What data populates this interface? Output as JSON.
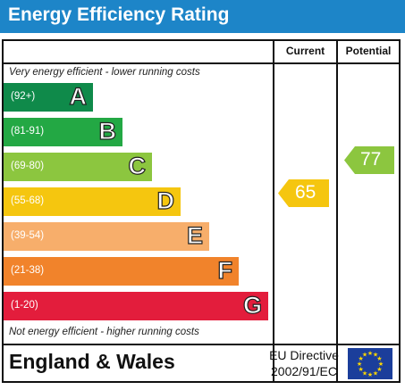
{
  "header": {
    "title": "Energy Efficiency Rating"
  },
  "columns": {
    "current": "Current",
    "potential": "Potential"
  },
  "notes": {
    "top": "Very energy efficient - lower running costs",
    "bottom": "Not energy efficient - higher running costs"
  },
  "bands": [
    {
      "range": "(92+)",
      "letter": "A",
      "color": "#0f8a4a"
    },
    {
      "range": "(81-91)",
      "letter": "B",
      "color": "#23a844"
    },
    {
      "range": "(69-80)",
      "letter": "C",
      "color": "#8cc63f"
    },
    {
      "range": "(55-68)",
      "letter": "D",
      "color": "#f5c60f"
    },
    {
      "range": "(39-54)",
      "letter": "E",
      "color": "#f7ae6b"
    },
    {
      "range": "(21-38)",
      "letter": "F",
      "color": "#f1832b"
    },
    {
      "range": "(1-20)",
      "letter": "G",
      "color": "#e31d3c"
    }
  ],
  "ratings": {
    "current": {
      "value": "65",
      "color": "#f5c60f"
    },
    "potential": {
      "value": "77",
      "color": "#8cc63f"
    }
  },
  "footer": {
    "region": "England & Wales",
    "directive_line1": "EU Directive",
    "directive_line2": "2002/91/EC",
    "flag_icon": "eu-flag-icon"
  }
}
